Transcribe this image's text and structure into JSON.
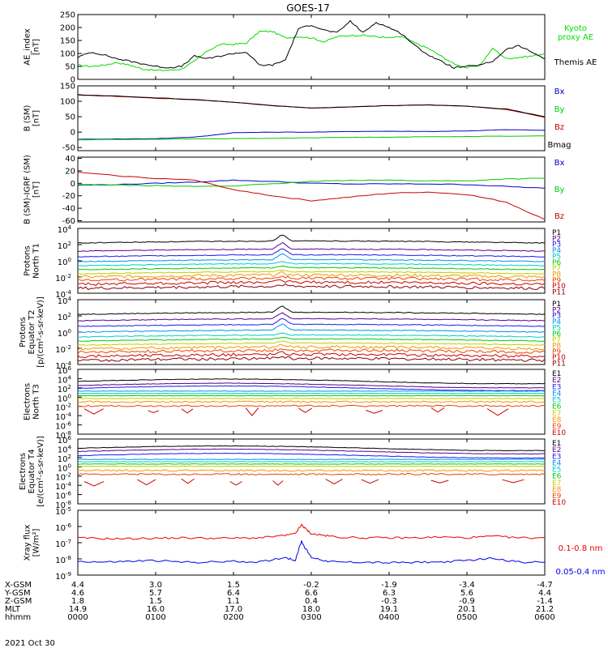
{
  "title": "GOES-17",
  "date": "2021 Oct 30",
  "chart_data": [
    {
      "type": "line",
      "ylabel": [
        "AE_index",
        "[nT]"
      ],
      "ylim": [
        0,
        250
      ],
      "yticks": [
        "250",
        "200",
        "150",
        "100",
        "50",
        "0"
      ],
      "ytick_values": [
        250,
        200,
        150,
        100,
        50,
        0
      ],
      "legend": [
        {
          "name": "Kyoto",
          "color": "#00dd00"
        },
        {
          "name": "proxy AE",
          "color": "#00dd00"
        },
        {
          "name": "Themis AE",
          "color": "#000000"
        }
      ],
      "series": [
        {
          "name": "Kyoto proxy AE",
          "color": "#00dd00",
          "x": [
            0,
            20,
            40,
            60,
            80,
            100,
            120,
            140,
            160,
            180,
            200,
            220,
            240,
            260,
            280,
            300,
            320,
            340,
            360,
            380,
            400,
            420,
            440,
            460,
            480,
            500,
            520,
            540,
            560,
            580,
            600,
            620,
            640,
            660,
            680,
            700,
            720
          ],
          "y": [
            55,
            50,
            55,
            65,
            55,
            40,
            35,
            35,
            40,
            70,
            110,
            135,
            135,
            140,
            185,
            185,
            160,
            165,
            160,
            145,
            165,
            170,
            170,
            165,
            160,
            165,
            140,
            120,
            90,
            60,
            45,
            55,
            120,
            80,
            85,
            90,
            100
          ]
        },
        {
          "name": "Themis AE",
          "color": "#000000",
          "x": [
            0,
            20,
            40,
            60,
            80,
            100,
            120,
            140,
            160,
            180,
            200,
            220,
            240,
            260,
            280,
            300,
            320,
            340,
            360,
            380,
            400,
            420,
            440,
            460,
            480,
            500,
            520,
            540,
            560,
            580,
            600,
            620,
            640,
            660,
            680,
            700,
            720
          ],
          "y": [
            85,
            105,
            95,
            80,
            70,
            60,
            50,
            45,
            50,
            90,
            80,
            90,
            100,
            105,
            55,
            55,
            75,
            195,
            210,
            190,
            180,
            225,
            180,
            220,
            200,
            175,
            130,
            95,
            70,
            45,
            50,
            55,
            70,
            115,
            130,
            105,
            80
          ]
        }
      ]
    },
    {
      "type": "line",
      "ylabel": [
        "B (SM)",
        "[nT]"
      ],
      "ylim": [
        -60,
        150
      ],
      "yticks": [
        "150",
        "100",
        "50",
        "0",
        "-50"
      ],
      "ytick_values": [
        150,
        100,
        50,
        0,
        -50
      ],
      "legend": [
        {
          "name": "Bx",
          "color": "#0000cc"
        },
        {
          "name": "By",
          "color": "#00cc00"
        },
        {
          "name": "Bz",
          "color": "#cc0000"
        },
        {
          "name": "Bmag",
          "color": "#000000"
        }
      ],
      "series": [
        {
          "name": "Bx",
          "color": "#0000cc",
          "x": [
            0,
            60,
            120,
            180,
            240,
            300,
            360,
            420,
            480,
            540,
            600,
            660,
            720
          ],
          "y": [
            -23,
            -22,
            -21,
            -16,
            -2,
            0,
            0,
            2,
            3,
            2,
            4,
            8,
            6
          ]
        },
        {
          "name": "By",
          "color": "#00cc00",
          "x": [
            0,
            60,
            120,
            180,
            240,
            300,
            360,
            420,
            480,
            540,
            600,
            660,
            720
          ],
          "y": [
            -25,
            -24,
            -23,
            -22,
            -21,
            -20,
            -18,
            -17,
            -16,
            -15,
            -14,
            -13,
            -12
          ]
        },
        {
          "name": "Bz",
          "color": "#cc0000",
          "x": [
            0,
            60,
            120,
            180,
            240,
            300,
            360,
            420,
            480,
            540,
            600,
            660,
            720
          ],
          "y": [
            120,
            116,
            110,
            105,
            97,
            86,
            78,
            82,
            86,
            88,
            84,
            74,
            48
          ]
        },
        {
          "name": "Bmag",
          "color": "#000000",
          "x": [
            0,
            60,
            120,
            180,
            240,
            300,
            360,
            420,
            480,
            540,
            600,
            660,
            720
          ],
          "y": [
            121,
            117,
            111,
            106,
            97,
            86,
            78,
            82,
            86,
            88,
            84,
            75,
            50
          ]
        }
      ]
    },
    {
      "type": "line",
      "ylabel": [
        "B (SM)-IGRF (SM)",
        "[nT]"
      ],
      "ylim": [
        -62,
        42
      ],
      "yticks": [
        "40",
        "20",
        "0",
        "-20",
        "-40",
        "-60"
      ],
      "ytick_values": [
        40,
        20,
        0,
        -20,
        -40,
        -60
      ],
      "legend": [
        {
          "name": "Bx",
          "color": "#0000cc"
        },
        {
          "name": "By",
          "color": "#00cc00"
        },
        {
          "name": "Bz",
          "color": "#cc0000"
        }
      ],
      "series": [
        {
          "name": "Bx",
          "color": "#0000cc",
          "x": [
            0,
            60,
            120,
            180,
            240,
            300,
            360,
            420,
            480,
            540,
            600,
            660,
            720
          ],
          "y": [
            -3,
            -2,
            0,
            2,
            5,
            3,
            0,
            -1,
            -1,
            -1,
            -2,
            -5,
            -8
          ]
        },
        {
          "name": "By",
          "color": "#00cc00",
          "x": [
            0,
            60,
            120,
            180,
            240,
            300,
            360,
            420,
            480,
            540,
            600,
            660,
            720
          ],
          "y": [
            -2,
            -3,
            -4,
            -5,
            -4,
            -1,
            3,
            5,
            5,
            4,
            4,
            7,
            8
          ]
        },
        {
          "name": "Bz",
          "color": "#cc0000",
          "x": [
            0,
            60,
            120,
            180,
            240,
            300,
            360,
            420,
            480,
            540,
            600,
            660,
            720
          ],
          "y": [
            18,
            12,
            8,
            5,
            -10,
            -20,
            -28,
            -22,
            -16,
            -14,
            -18,
            -30,
            -58
          ]
        }
      ]
    },
    {
      "type": "line",
      "log": true,
      "ylabel": [
        "Protons",
        "North T1"
      ],
      "ylim_exp": [
        -4,
        4
      ],
      "tick_exps": [
        4,
        2,
        0,
        -2,
        -4
      ],
      "legend": [
        "P1",
        "P2",
        "P3",
        "P4",
        "P5",
        "P6",
        "P7",
        "P8",
        "P9",
        "P10",
        "P11"
      ],
      "colors": [
        "#000000",
        "#5a0090",
        "#1a1aee",
        "#0090ee",
        "#00cccc",
        "#00cc00",
        "#c8c800",
        "#ee9900",
        "#ee4400",
        "#cc0000",
        "#880000"
      ],
      "levels": [
        2.2,
        1.2,
        0.5,
        -0.1,
        -0.6,
        -1.1,
        -1.6,
        -2.0,
        -2.4,
        -2.9,
        -3.4
      ],
      "x_bump": [
        200,
        240,
        420,
        540
      ],
      "bump_amount": [
        0.6,
        1.0,
        0.3,
        0.2
      ]
    },
    {
      "type": "line",
      "log": true,
      "ylabel": [
        "Protons",
        "Equator T2",
        "[p/(cm²-s-sr-keV)]"
      ],
      "ylim_exp": [
        -4,
        4
      ],
      "tick_exps": [
        4,
        2,
        0,
        -2,
        -4
      ],
      "legend": [
        "P1",
        "P2",
        "P3",
        "P4",
        "P5",
        "P6",
        "P7",
        "P8",
        "P9",
        "P10",
        "P11"
      ],
      "colors": [
        "#000000",
        "#5a0090",
        "#1a1aee",
        "#0090ee",
        "#00cccc",
        "#00cc00",
        "#c8c800",
        "#ee9900",
        "#ee4400",
        "#cc0000",
        "#880000"
      ],
      "levels": [
        2.2,
        1.4,
        0.7,
        0.0,
        -0.6,
        -1.1,
        -1.6,
        -2.1,
        -2.5,
        -3.0,
        -3.5
      ],
      "x_bump": [
        200,
        240,
        420,
        540
      ],
      "bump_amount": [
        0.7,
        1.0,
        0.3,
        0.2
      ]
    },
    {
      "type": "line",
      "log": true,
      "ylabel": [
        "Electrons",
        "North T3"
      ],
      "ylim_exp": [
        -8,
        6
      ],
      "tick_exps": [
        6,
        4,
        2,
        0,
        -2,
        -4,
        -6,
        -8
      ],
      "legend": [
        "E1",
        "E2",
        "E3",
        "E4",
        "E5",
        "E6",
        "E7",
        "E8",
        "E9",
        "E10"
      ],
      "colors": [
        "#000000",
        "#5a0090",
        "#1a1aee",
        "#0090ee",
        "#00cccc",
        "#00cc00",
        "#c8c800",
        "#ee9900",
        "#ee4400",
        "#cc0000"
      ],
      "levels": [
        3.4,
        2.5,
        1.9,
        1.3,
        0.8,
        0.3,
        -0.3,
        -1.0,
        -1.9,
        null
      ],
      "sparse_level": -2.6
    },
    {
      "type": "line",
      "log": true,
      "ylabel": [
        "Electrons",
        "Equator T4",
        "[e/(cm²-s-sr-keV)]"
      ],
      "ylim_exp": [
        -8,
        6
      ],
      "tick_exps": [
        6,
        4,
        2,
        0,
        -2,
        -4,
        -6,
        -8
      ],
      "legend": [
        "E1",
        "E2",
        "E3",
        "E4",
        "E5",
        "E6",
        "E7",
        "E8",
        "E9",
        "E10"
      ],
      "colors": [
        "#000000",
        "#5a0090",
        "#1a1aee",
        "#0090ee",
        "#00cccc",
        "#00cc00",
        "#c8c800",
        "#ee9900",
        "#ee4400",
        "#cc0000"
      ],
      "levels": [
        4.0,
        3.3,
        2.4,
        1.6,
        1.1,
        0.6,
        0.1,
        -0.8,
        -1.6,
        null
      ],
      "sparse_level": -2.8
    },
    {
      "type": "line",
      "log": true,
      "ylabel": [
        "Xray flux",
        "[W/m²]"
      ],
      "ylim_exp": [
        -9,
        -5
      ],
      "tick_exps": [
        -5,
        -6,
        -7,
        -8,
        -9
      ],
      "legend": [
        {
          "name": "0.1-0.8 nm",
          "color": "#ee0000"
        },
        {
          "name": "0.05-0.4 nm",
          "color": "#0000ee"
        }
      ],
      "series": [
        {
          "name": "0.1-0.8 nm",
          "color": "#ee0000",
          "x": [
            0,
            40,
            80,
            120,
            160,
            200,
            240,
            280,
            320,
            335,
            345,
            350,
            360,
            380,
            400,
            440,
            480,
            520,
            560,
            600,
            640,
            680,
            720
          ],
          "y": [
            -6.7,
            -6.75,
            -6.75,
            -6.72,
            -6.7,
            -6.72,
            -6.72,
            -6.7,
            -6.55,
            -6.45,
            -5.9,
            -6.1,
            -6.45,
            -6.55,
            -6.65,
            -6.7,
            -6.7,
            -6.7,
            -6.65,
            -6.7,
            -6.6,
            -6.7,
            -6.7
          ]
        },
        {
          "name": "0.05-0.4 nm",
          "color": "#0000ee",
          "x": [
            0,
            40,
            80,
            120,
            160,
            200,
            240,
            280,
            320,
            335,
            345,
            350,
            360,
            380,
            400,
            440,
            480,
            520,
            560,
            600,
            640,
            680,
            720
          ],
          "y": [
            -8.15,
            -8.2,
            -8.15,
            -8.1,
            -8.2,
            -8.2,
            -8.15,
            -8.2,
            -7.9,
            -8.1,
            -6.9,
            -7.3,
            -7.9,
            -8.1,
            -8.2,
            -8.2,
            -8.25,
            -8.2,
            -8.2,
            -8.1,
            -7.95,
            -8.2,
            -8.2
          ]
        }
      ]
    }
  ],
  "xticks_minutes": [
    0,
    120,
    240,
    360,
    480,
    600,
    720
  ],
  "footer": {
    "labels": [
      "X-GSM",
      "Y-GSM",
      "Z-GSM",
      "MLT",
      "hhmm"
    ],
    "columns": [
      [
        "4.4",
        "4.6",
        "1.8",
        "14.9",
        "0000"
      ],
      [
        "3.0",
        "5.7",
        "1.5",
        "16.0",
        "0100"
      ],
      [
        "1.5",
        "6.4",
        "1.1",
        "17.0",
        "0200"
      ],
      [
        "-0.2",
        "6.6",
        "0.4",
        "18.0",
        "0300"
      ],
      [
        "-1.9",
        "6.3",
        "-0.3",
        "19.1",
        "0400"
      ],
      [
        "-3.4",
        "5.6",
        "-0.9",
        "20.1",
        "0500"
      ],
      [
        "-4.7",
        "4.4",
        "-1.4",
        "21.2",
        "0600"
      ]
    ]
  }
}
